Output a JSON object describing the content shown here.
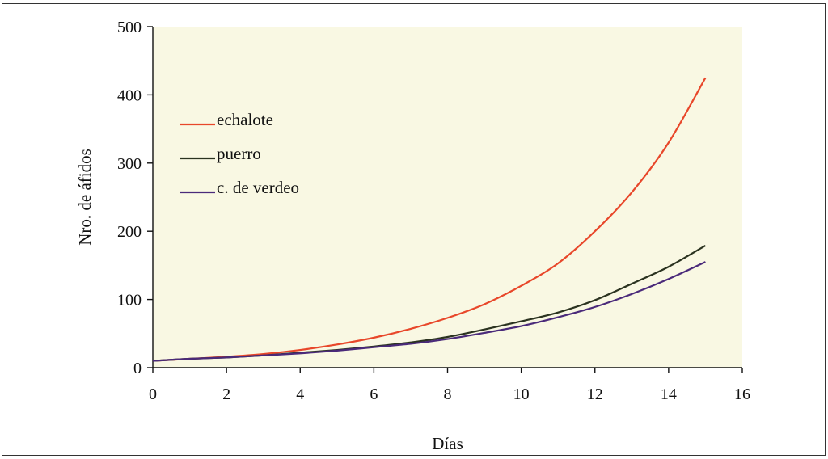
{
  "chart_data": {
    "type": "line",
    "title": "",
    "xlabel": "Días",
    "ylabel": "Nro. de áfidos",
    "xlim": [
      0,
      16
    ],
    "ylim": [
      0,
      500
    ],
    "xticks": [
      "0",
      "2",
      "4",
      "6",
      "8",
      "10",
      "12",
      "14",
      "16"
    ],
    "yticks": [
      "0",
      "100",
      "200",
      "300",
      "400",
      "500"
    ],
    "grid": false,
    "plot_background": "#f9f8e3",
    "legend_position": "top-left",
    "x": [
      0,
      1,
      2,
      3,
      4,
      5,
      6,
      7,
      8,
      9,
      10,
      11,
      12,
      13,
      14,
      15
    ],
    "series": [
      {
        "name": "echalote",
        "color": "#e8472a",
        "values": [
          10,
          13,
          16,
          20,
          26,
          34,
          44,
          57,
          73,
          93,
          120,
          153,
          200,
          257,
          330,
          425
        ]
      },
      {
        "name": "puerro",
        "color": "#2b3320",
        "values": [
          10,
          13,
          15,
          18,
          22,
          26,
          31,
          37,
          45,
          56,
          68,
          81,
          99,
          123,
          148,
          179
        ]
      },
      {
        "name": "c. de verdeo",
        "color": "#4a2a7a",
        "values": [
          10,
          13,
          15,
          18,
          21,
          25,
          30,
          35,
          42,
          51,
          61,
          74,
          89,
          108,
          130,
          155
        ]
      }
    ]
  }
}
